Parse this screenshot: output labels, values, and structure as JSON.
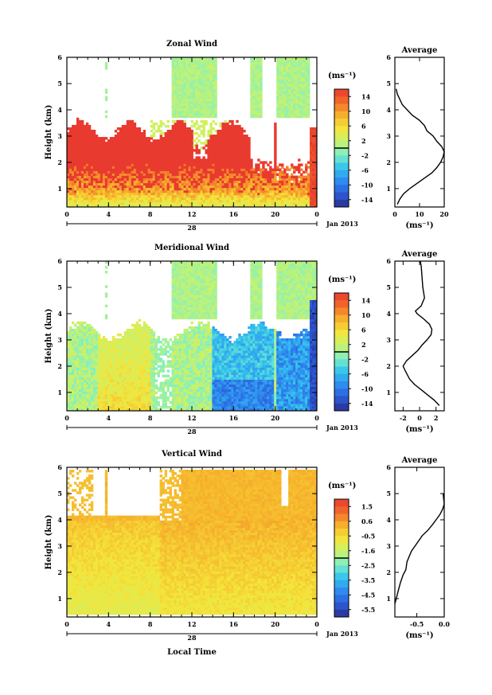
{
  "page": {
    "background": "#ffffff"
  },
  "date_label": "Jan 2013",
  "day_label": "28",
  "time_axis_label": "Local Time",
  "height_axis_label": "Height (km)",
  "chart_data": [
    {
      "type": "heatmap",
      "title": "Zonal Wind",
      "xlabel": "",
      "ylabel": "Height (km)",
      "xlim": [
        0,
        24
      ],
      "ylim": [
        0.3,
        6
      ],
      "xticks": [
        "0",
        "4",
        "8",
        "12",
        "16",
        "20",
        "0"
      ],
      "yticks": [
        "1",
        "2",
        "3",
        "4",
        "5",
        "6"
      ],
      "colorbar": {
        "unit": "(ms⁻¹)",
        "range": [
          -16,
          16
        ],
        "ticks": [
          "14",
          "10",
          "6",
          "2",
          "-2",
          "-6",
          "-10",
          "-14"
        ],
        "colors": [
          "#2a2f8f",
          "#2c5bd9",
          "#2f8df0",
          "#33c3ee",
          "#7ff0c6",
          "#c9f26a",
          "#f4e53a",
          "#f6b12c",
          "#f26c2a",
          "#e83a2f"
        ]
      },
      "pattern": "zonal"
    },
    {
      "type": "heatmap",
      "title": "Meridional Wind",
      "xlabel": "",
      "ylabel": "Height (km)",
      "xlim": [
        0,
        24
      ],
      "ylim": [
        0.3,
        6
      ],
      "xticks": [
        "0",
        "4",
        "8",
        "12",
        "16",
        "20",
        "0"
      ],
      "yticks": [
        "1",
        "2",
        "3",
        "4",
        "5",
        "6"
      ],
      "colorbar": {
        "unit": "(ms⁻¹)",
        "range": [
          -16,
          16
        ],
        "ticks": [
          "14",
          "10",
          "6",
          "2",
          "-2",
          "-6",
          "-10",
          "-14"
        ],
        "colors": [
          "#2a2f8f",
          "#2c5bd9",
          "#2f8df0",
          "#33c3ee",
          "#7ff0c6",
          "#c9f26a",
          "#f4e53a",
          "#f6b12c",
          "#f26c2a",
          "#e83a2f"
        ]
      },
      "pattern": "meridional"
    },
    {
      "type": "heatmap",
      "title": "Vertical Wind",
      "xlabel": "Local Time",
      "ylabel": "Height (km)",
      "xlim": [
        0,
        24
      ],
      "ylim": [
        0.3,
        6
      ],
      "xticks": [
        "0",
        "4",
        "8",
        "12",
        "16",
        "20",
        "0"
      ],
      "yticks": [
        "1",
        "2",
        "3",
        "4",
        "5",
        "6"
      ],
      "colorbar": {
        "unit": "(ms⁻¹)",
        "range": [
          -6,
          2
        ],
        "ticks": [
          "1.5",
          "0.6",
          "-0.5",
          "-1.6",
          "-2.5",
          "-3.5",
          "-4.5",
          "-5.5"
        ],
        "colors": [
          "#2a2f8f",
          "#2c5bd9",
          "#2f8df0",
          "#33c3ee",
          "#7ff0c6",
          "#c9f26a",
          "#f4e53a",
          "#f6b12c",
          "#f26c2a",
          "#e83a2f"
        ]
      },
      "pattern": "vertical"
    }
  ],
  "profiles": [
    {
      "type": "line",
      "title": "Average",
      "xlabel": "(ms⁻¹)",
      "xlim": [
        0,
        20
      ],
      "ylim": [
        0.3,
        6
      ],
      "xticks": [
        "0",
        "10",
        "20"
      ],
      "yticks": [
        "1",
        "2",
        "3",
        "4",
        "5",
        "6"
      ],
      "x": [
        1,
        2,
        3.5,
        6,
        9,
        12,
        15,
        17,
        18.5,
        19.5,
        20,
        19,
        17,
        15.5,
        13,
        12,
        10,
        7,
        5,
        3,
        2,
        1,
        0.5
      ],
      "y": [
        0.4,
        0.6,
        0.8,
        1.0,
        1.2,
        1.4,
        1.6,
        1.8,
        2.0,
        2.2,
        2.4,
        2.6,
        2.8,
        3.0,
        3.2,
        3.4,
        3.6,
        3.8,
        4.0,
        4.2,
        4.4,
        4.6,
        4.8
      ]
    },
    {
      "type": "line",
      "title": "Average",
      "xlabel": "(ms⁻¹)",
      "xlim": [
        -3,
        3
      ],
      "ylim": [
        0.3,
        6
      ],
      "xticks": [
        "-2",
        "0",
        "2"
      ],
      "yticks": [
        "1",
        "2",
        "3",
        "4",
        "5",
        "6"
      ],
      "x": [
        2.4,
        1.8,
        1.0,
        0.2,
        -0.6,
        -1.2,
        -1.7,
        -2.0,
        -1.6,
        -0.9,
        -0.2,
        0.3,
        0.9,
        1.4,
        1.5,
        1.2,
        0.5,
        -0.3,
        -0.5,
        0.2,
        0.6,
        0.4,
        0.3,
        0.2,
        0.1
      ],
      "y": [
        0.5,
        0.7,
        0.9,
        1.1,
        1.3,
        1.5,
        1.8,
        2.0,
        2.2,
        2.4,
        2.6,
        2.8,
        3.0,
        3.2,
        3.4,
        3.6,
        3.8,
        4.0,
        4.1,
        4.3,
        4.6,
        5.0,
        5.4,
        5.8,
        6.0
      ]
    },
    {
      "type": "line",
      "title": "Average",
      "xlabel": "(ms⁻¹)",
      "xlim": [
        -0.9,
        0.0
      ],
      "ylim": [
        0.3,
        6
      ],
      "xticks": [
        "-0.5",
        "0.0"
      ],
      "yticks": [
        "1",
        "2",
        "3",
        "4",
        "5",
        "6"
      ],
      "x": [
        -0.9,
        -0.85,
        -0.8,
        -0.75,
        -0.7,
        -0.68,
        -0.6,
        -0.5,
        -0.4,
        -0.3,
        -0.22,
        -0.15,
        -0.08,
        -0.03,
        0.0,
        -0.02
      ],
      "y": [
        0.8,
        1.2,
        1.6,
        1.9,
        2.1,
        2.4,
        2.8,
        3.1,
        3.4,
        3.6,
        3.8,
        4.0,
        4.2,
        4.4,
        4.6,
        5.0
      ]
    }
  ]
}
